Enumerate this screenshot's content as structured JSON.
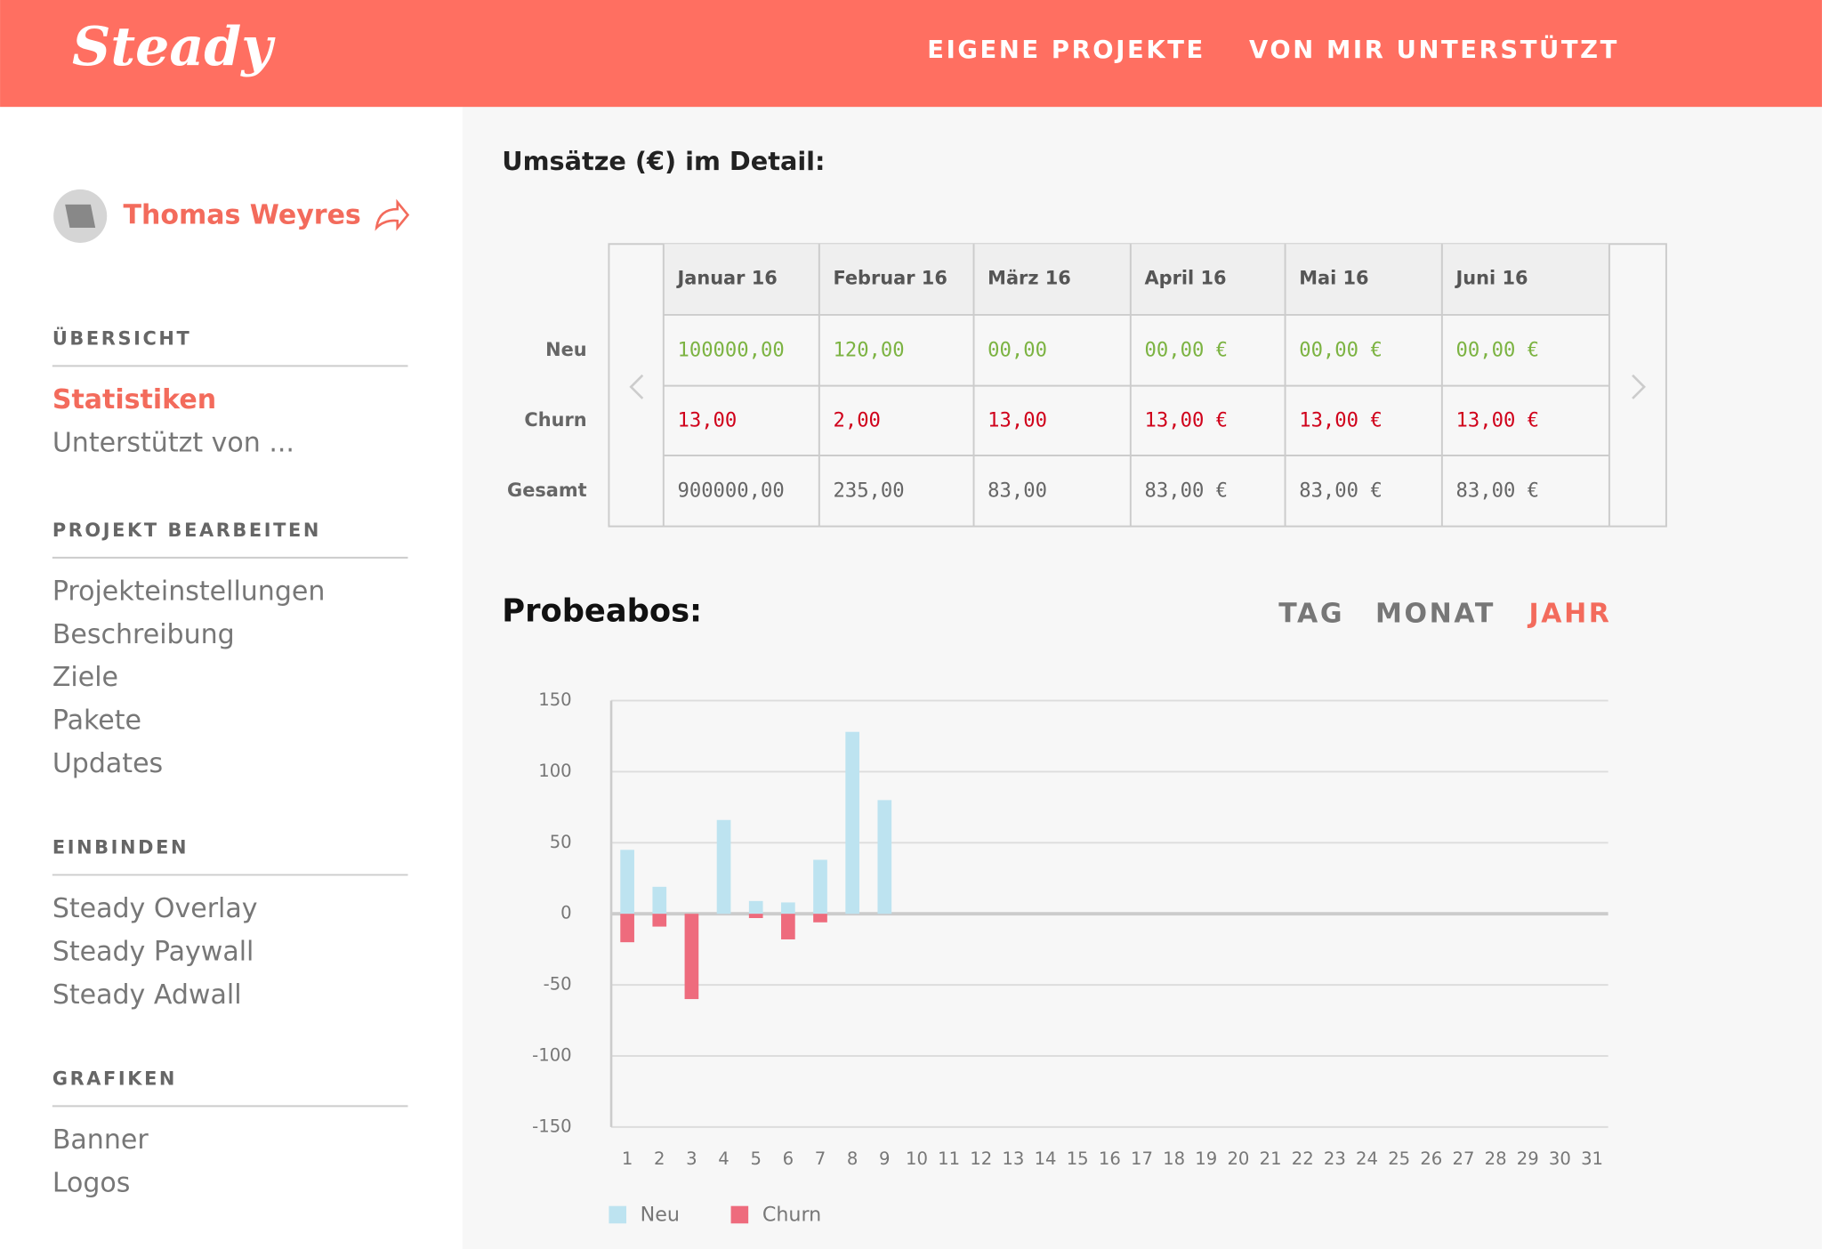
{
  "header": {
    "logo": "Steady",
    "nav": [
      "EIGENE PROJEKTE",
      "VON MIR UNTERSTÜTZT"
    ]
  },
  "sidebar": {
    "user": "Thomas Weyres",
    "sections": [
      {
        "title": "ÜBERSICHT",
        "items": [
          {
            "label": "Statistiken",
            "active": true
          },
          {
            "label": "Unterstützt von ..."
          }
        ]
      },
      {
        "title": "PROJEKT BEARBEITEN",
        "items": [
          {
            "label": "Projekteinstellungen"
          },
          {
            "label": "Beschreibung"
          },
          {
            "label": "Ziele"
          },
          {
            "label": "Pakete"
          },
          {
            "label": "Updates"
          }
        ]
      },
      {
        "title": "EINBINDEN",
        "items": [
          {
            "label": "Steady Overlay"
          },
          {
            "label": "Steady Paywall"
          },
          {
            "label": "Steady Adwall"
          }
        ]
      },
      {
        "title": "GRAFIKEN",
        "items": [
          {
            "label": "Banner"
          },
          {
            "label": "Logos"
          }
        ]
      }
    ]
  },
  "table": {
    "title": "Umsätze (€) im Detail:",
    "columns": [
      "Januar 16",
      "Februar 16",
      "März 16",
      "April 16",
      "Mai 16",
      "Juni 16"
    ],
    "rows": [
      {
        "label": "Neu",
        "color": "#7cb342",
        "cells": [
          "100000,00",
          "120,00",
          "00,00",
          "00,00 €",
          "00,00 €",
          "00,00 €"
        ]
      },
      {
        "label": "Churn",
        "color": "#d0021b",
        "cells": [
          "13,00",
          "2,00",
          "13,00",
          "13,00 €",
          "13,00 €",
          "13,00 €"
        ]
      },
      {
        "label": "Gesamt",
        "color": "#666666",
        "cells": [
          "900000,00",
          "235,00",
          "83,00",
          "83,00 €",
          "83,00 €",
          "83,00 €"
        ]
      }
    ]
  },
  "period": {
    "options": [
      "TAG",
      "MONAT",
      "JAHR"
    ],
    "active": 2
  },
  "chart_data": {
    "type": "bar",
    "title": "Probeabos:",
    "categories": [
      1,
      2,
      3,
      4,
      5,
      6,
      7,
      8,
      9,
      10,
      11,
      12,
      13,
      14,
      15,
      16,
      17,
      18,
      19,
      20,
      21,
      22,
      23,
      24,
      25,
      26,
      27,
      28,
      29,
      30,
      31
    ],
    "series": [
      {
        "name": "Neu",
        "color": "#bde3f0",
        "values": [
          45,
          19,
          0,
          66,
          9,
          8,
          38,
          128,
          80,
          null,
          null,
          null,
          null,
          null,
          null,
          null,
          null,
          null,
          null,
          null,
          null,
          null,
          null,
          null,
          null,
          null,
          null,
          null,
          null,
          null,
          null
        ]
      },
      {
        "name": "Churn",
        "color": "#ee6b7d",
        "values": [
          -20,
          -9,
          -60,
          0,
          -3,
          -18,
          -6,
          0,
          0,
          null,
          null,
          null,
          null,
          null,
          null,
          null,
          null,
          null,
          null,
          null,
          null,
          null,
          null,
          null,
          null,
          null,
          null,
          null,
          null,
          null,
          null
        ]
      }
    ],
    "ylim": [
      -150,
      150
    ],
    "yticks": [
      150,
      100,
      50,
      0,
      -50,
      -100,
      -150
    ],
    "grid": true
  }
}
